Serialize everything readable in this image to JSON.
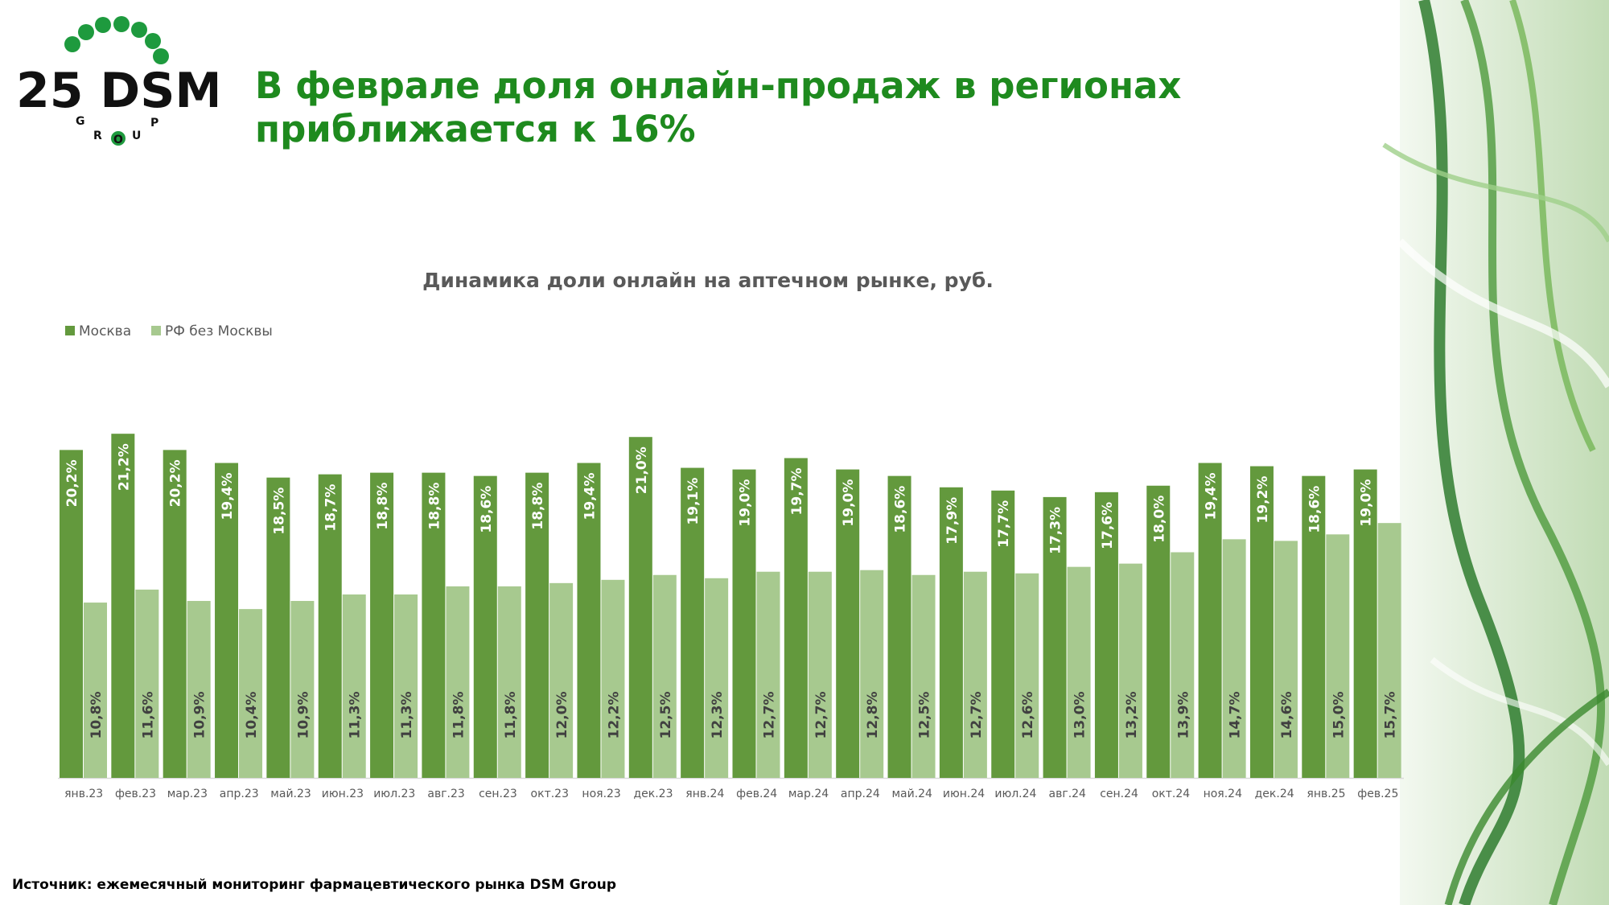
{
  "logo": {
    "text": "25 DSM",
    "sub": [
      "G",
      "R",
      "O",
      "U",
      "P"
    ],
    "color": "#1e9a3e"
  },
  "slide": {
    "title_line1": "В феврале доля онлайн-продаж в регионах",
    "title_line2": "приближается к 16%",
    "source": "Источник: ежемесячный мониторинг фармацевтического рынка DSM Group"
  },
  "colors": {
    "title": "#1e8a1e",
    "moscow": "#63993d",
    "regions": "#a7c98f"
  },
  "chart_data": {
    "type": "bar",
    "title": "Динамика доли онлайн на аптечном рынке, руб.",
    "xlabel": "",
    "ylabel": "",
    "ylim": [
      0,
      24
    ],
    "legend_position": "top-left",
    "categories": [
      "янв.23",
      "фев.23",
      "мар.23",
      "апр.23",
      "май.23",
      "июн.23",
      "июл.23",
      "авг.23",
      "сен.23",
      "окт.23",
      "ноя.23",
      "дек.23",
      "янв.24",
      "фев.24",
      "мар.24",
      "апр.24",
      "май.24",
      "июн.24",
      "июл.24",
      "авг.24",
      "сен.24",
      "окт.24",
      "ноя.24",
      "дек.24",
      "янв.25",
      "фев.25"
    ],
    "series": [
      {
        "name": "Москва",
        "values": [
          20.2,
          21.2,
          20.2,
          19.4,
          18.5,
          18.7,
          18.8,
          18.8,
          18.6,
          18.8,
          19.4,
          21.0,
          19.1,
          19.0,
          19.7,
          19.0,
          18.6,
          17.9,
          17.7,
          17.3,
          17.6,
          18.0,
          19.4,
          19.2,
          18.6,
          19.0
        ],
        "labels": [
          "20,2%",
          "21,2%",
          "20,2%",
          "19,4%",
          "18,5%",
          "18,7%",
          "18,8%",
          "18,8%",
          "18,6%",
          "18,8%",
          "19,4%",
          "21,0%",
          "19,1%",
          "19,0%",
          "19,7%",
          "19,0%",
          "18,6%",
          "17,9%",
          "17,7%",
          "17,3%",
          "17,6%",
          "18,0%",
          "19,4%",
          "19,2%",
          "18,6%",
          "19,0%"
        ]
      },
      {
        "name": "РФ без Москвы",
        "values": [
          10.8,
          11.6,
          10.9,
          10.4,
          10.9,
          11.3,
          11.3,
          11.8,
          11.8,
          12.0,
          12.2,
          12.5,
          12.3,
          12.7,
          12.7,
          12.8,
          12.5,
          12.7,
          12.6,
          13.0,
          13.2,
          13.9,
          14.7,
          14.6,
          15.0,
          15.7
        ],
        "labels": [
          "10,8%",
          "11,6%",
          "10,9%",
          "10,4%",
          "10,9%",
          "11,3%",
          "11,3%",
          "11,8%",
          "11,8%",
          "12,0%",
          "12,2%",
          "12,5%",
          "12,3%",
          "12,7%",
          "12,7%",
          "12,8%",
          "12,5%",
          "12,7%",
          "12,6%",
          "13,0%",
          "13,2%",
          "13,9%",
          "14,7%",
          "14,6%",
          "15,0%",
          "15,7%"
        ]
      }
    ]
  }
}
